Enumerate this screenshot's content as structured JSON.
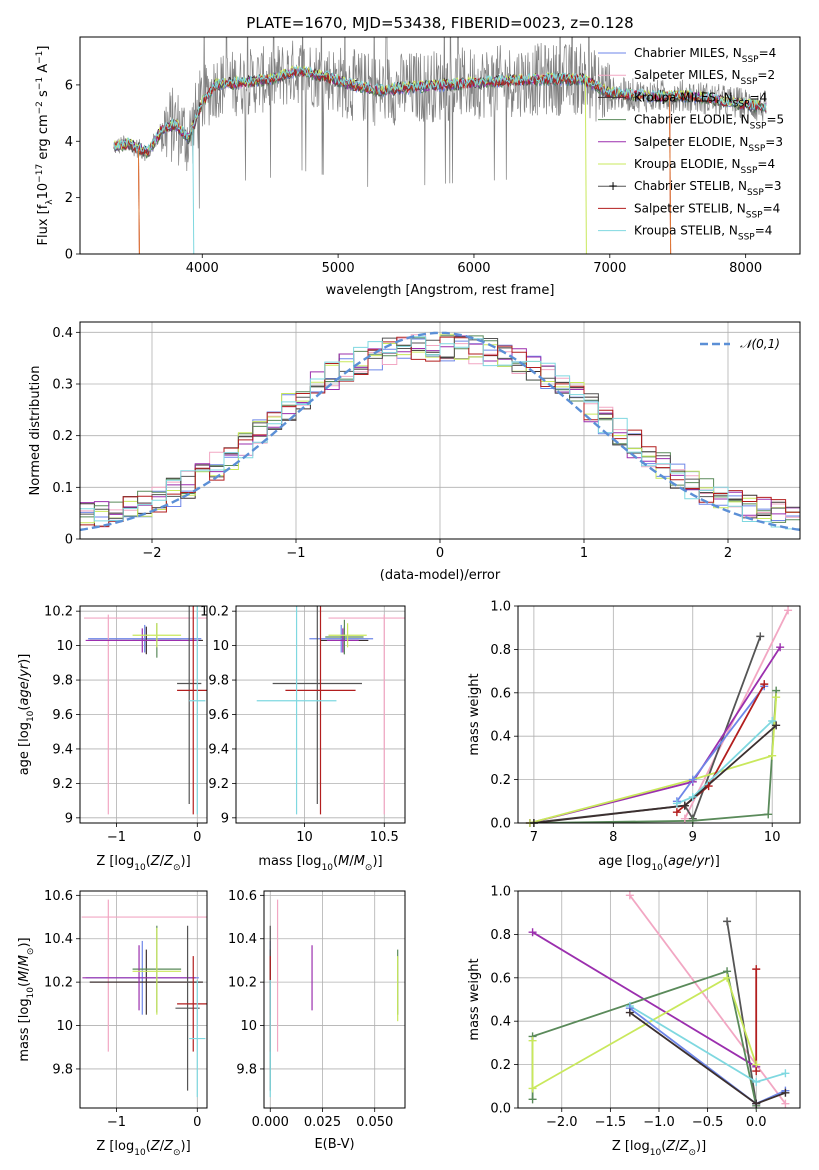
{
  "title": "PLATE=1670, MJD=53438, FIBERID=0023, z=0.128",
  "colors": {
    "chab_miles": "#6e86e8",
    "salp_miles": "#f2a7c3",
    "kroupa_miles": "#3b2f2f",
    "chab_elodie": "#5a8a5a",
    "salp_elodie": "#9b2fae",
    "kroupa_elodie": "#c9e85c",
    "chab_stelib": "#555555",
    "salp_stelib": "#b21e1e",
    "kroupa_stelib": "#7fd8e0",
    "data": "#808080",
    "gauss": "#5b8fd6"
  },
  "legend": [
    {
      "key": "chab_miles",
      "base": "Chabrier MILES, N",
      "sub": "SSP",
      "tail": "=4"
    },
    {
      "key": "salp_miles",
      "base": "Salpeter MILES, N",
      "sub": "SSP",
      "tail": "=2"
    },
    {
      "key": "kroupa_miles",
      "base": "Kroupa MILES, N",
      "sub": "SSP",
      "tail": "=4"
    },
    {
      "key": "chab_elodie",
      "base": "Chabrier ELODIE, N",
      "sub": "SSP",
      "tail": "=5"
    },
    {
      "key": "salp_elodie",
      "base": "Salpeter ELODIE, N",
      "sub": "SSP",
      "tail": "=3"
    },
    {
      "key": "kroupa_elodie",
      "base": "Kroupa ELODIE, N",
      "sub": "SSP",
      "tail": "=4"
    },
    {
      "key": "chab_stelib",
      "base": "Chabrier STELIB, N",
      "sub": "SSP",
      "tail": "=3"
    },
    {
      "key": "salp_stelib",
      "base": "Salpeter STELIB, N",
      "sub": "SSP",
      "tail": "=4"
    },
    {
      "key": "kroupa_stelib",
      "base": "Kroupa STELIB, N",
      "sub": "SSP",
      "tail": "=4"
    }
  ],
  "chart_data": [
    {
      "id": "spectrum",
      "type": "line",
      "xlabel": "wavelength [Angstrom, rest frame]",
      "ylabel": "Flux [f_λ 10^-17 erg cm^-2 s^-1 A^-1]",
      "xlim": [
        3100,
        8400
      ],
      "ylim": [
        0,
        7.7
      ],
      "xticks": [
        4000,
        5000,
        6000,
        7000,
        8000
      ],
      "yticks": [
        0,
        2,
        4,
        6
      ],
      "continuum": [
        [
          3350,
          3.8
        ],
        [
          3450,
          3.9
        ],
        [
          3600,
          3.6
        ],
        [
          3700,
          4.4
        ],
        [
          3800,
          4.6
        ],
        [
          3900,
          4.1
        ],
        [
          4000,
          5.4
        ],
        [
          4100,
          6.0
        ],
        [
          4300,
          6.1
        ],
        [
          4500,
          6.2
        ],
        [
          4700,
          6.5
        ],
        [
          4900,
          6.3
        ],
        [
          5100,
          6.0
        ],
        [
          5300,
          5.8
        ],
        [
          5500,
          5.9
        ],
        [
          5800,
          6.0
        ],
        [
          6100,
          6.1
        ],
        [
          6500,
          6.2
        ],
        [
          6800,
          6.2
        ],
        [
          7000,
          5.7
        ],
        [
          7300,
          5.6
        ],
        [
          7600,
          5.6
        ],
        [
          8000,
          5.3
        ],
        [
          8150,
          5.2
        ]
      ],
      "data_range": [
        3350,
        8150
      ]
    },
    {
      "id": "residuals",
      "type": "histogram",
      "xlabel": "(data-model)/error",
      "ylabel": "Normed distribution",
      "xlim": [
        -2.5,
        2.5
      ],
      "ylim": [
        0,
        0.42
      ],
      "xticks": [
        -2,
        -1,
        0,
        1,
        2
      ],
      "yticks": [
        0.0,
        0.1,
        0.2,
        0.3,
        0.4
      ],
      "gauss_label": "𝒩(0,1)",
      "bin_width": 0.1
    },
    {
      "id": "age_vs_Z",
      "type": "scatter",
      "xlabel": "Z [log10(Z/Z⊙)]",
      "ylabel": "age [log10(age/yr)]",
      "xlim": [
        -1.45,
        0.12
      ],
      "ylim": [
        8.97,
        10.23
      ],
      "xticks": [
        -1,
        0
      ],
      "yticks": [
        9.0,
        9.2,
        9.4,
        9.6,
        9.8,
        10.0,
        10.2
      ],
      "points": [
        {
          "key": "chab_miles",
          "x": -0.65,
          "y": 10.04,
          "xerr": 0.7,
          "yerr": 0.08
        },
        {
          "key": "salp_miles",
          "x": -0.55,
          "y": 10.16,
          "xerr": 0.85,
          "yerr": 0.0
        },
        {
          "key": "salp_miles",
          "x": -1.1,
          "y": 9.6,
          "xerr": 0.0,
          "yerr": 0.58
        },
        {
          "key": "kroupa_miles",
          "x": -0.63,
          "y": 10.03,
          "xerr": 0.7,
          "yerr": 0.08
        },
        {
          "key": "chab_elodie",
          "x": -0.5,
          "y": 10.03,
          "xerr": 0.3,
          "yerr": 0.1
        },
        {
          "key": "salp_elodie",
          "x": -0.68,
          "y": 10.03,
          "xerr": 0.7,
          "yerr": 0.07
        },
        {
          "key": "kroupa_elodie",
          "x": -0.5,
          "y": 10.06,
          "xerr": 0.3,
          "yerr": 0.07
        },
        {
          "key": "chab_stelib",
          "x": -0.1,
          "y": 9.78,
          "xerr": 0.15,
          "yerr": 0.7
        },
        {
          "key": "salp_stelib",
          "x": -0.05,
          "y": 9.74,
          "xerr": 0.2,
          "yerr": 0.72
        },
        {
          "key": "kroupa_stelib",
          "x": 0.0,
          "y": 9.68,
          "xerr": 0.1,
          "yerr": 0.66
        }
      ]
    },
    {
      "id": "age_vs_mass",
      "type": "scatter",
      "xlabel": "mass [log10(M/M⊙)]",
      "ylabel": "",
      "xlim": [
        9.57,
        10.63
      ],
      "ylim": [
        8.97,
        10.23
      ],
      "xticks": [
        10.0,
        10.5
      ],
      "yticks": [
        9.0,
        9.2,
        9.4,
        9.6,
        9.8,
        10.0,
        10.2
      ],
      "points": [
        {
          "key": "chab_miles",
          "x": 10.23,
          "y": 10.04,
          "xerr": 0.2,
          "yerr": 0.08
        },
        {
          "key": "salp_miles",
          "x": 10.5,
          "y": 10.16,
          "xerr": 0.35,
          "yerr": 0.0
        },
        {
          "key": "salp_miles",
          "x": 10.5,
          "y": 9.6,
          "xerr": 0.0,
          "yerr": 0.58
        },
        {
          "key": "kroupa_miles",
          "x": 10.25,
          "y": 10.03,
          "xerr": 0.15,
          "yerr": 0.08
        },
        {
          "key": "chab_elodie",
          "x": 10.25,
          "y": 10.05,
          "xerr": 0.12,
          "yerr": 0.1
        },
        {
          "key": "salp_elodie",
          "x": 10.24,
          "y": 10.03,
          "xerr": 0.1,
          "yerr": 0.07
        },
        {
          "key": "kroupa_elodie",
          "x": 10.27,
          "y": 10.06,
          "xerr": 0.12,
          "yerr": 0.07
        },
        {
          "key": "chab_stelib",
          "x": 10.08,
          "y": 9.78,
          "xerr": 0.28,
          "yerr": 0.7
        },
        {
          "key": "salp_stelib",
          "x": 10.1,
          "y": 9.74,
          "xerr": 0.22,
          "yerr": 0.72
        },
        {
          "key": "kroupa_stelib",
          "x": 9.95,
          "y": 9.68,
          "xerr": 0.25,
          "yerr": 0.66
        }
      ]
    },
    {
      "id": "weight_vs_age",
      "type": "line",
      "xlabel": "age [log10(age/yr)]",
      "ylabel": "mass weight",
      "xlim": [
        6.8,
        10.35
      ],
      "ylim": [
        0,
        1.0
      ],
      "xticks": [
        7,
        8,
        9,
        10
      ],
      "yticks": [
        0.0,
        0.2,
        0.4,
        0.6,
        0.8,
        1.0
      ],
      "series": [
        {
          "key": "salp_miles",
          "x": [
            8.9,
            10.2
          ],
          "y": [
            0.02,
            0.98
          ]
        },
        {
          "key": "chab_stelib",
          "x": [
            6.95,
            8.9,
            9.0,
            9.85
          ],
          "y": [
            0.0,
            0.08,
            0.02,
            0.86
          ]
        },
        {
          "key": "salp_elodie",
          "x": [
            6.95,
            9.0,
            10.1
          ],
          "y": [
            0.0,
            0.19,
            0.81
          ]
        },
        {
          "key": "chab_elodie",
          "x": [
            7.0,
            9.0,
            9.95,
            10.05
          ],
          "y": [
            0.0,
            0.01,
            0.04,
            0.61
          ]
        },
        {
          "key": "kroupa_elodie",
          "x": [
            6.95,
            9.0,
            10.0,
            10.05
          ],
          "y": [
            0.0,
            0.2,
            0.31,
            0.58
          ]
        },
        {
          "key": "chab_miles",
          "x": [
            8.8,
            9.0,
            9.9
          ],
          "y": [
            0.1,
            0.2,
            0.63
          ]
        },
        {
          "key": "salp_stelib",
          "x": [
            8.8,
            9.2,
            9.9
          ],
          "y": [
            0.05,
            0.17,
            0.64
          ]
        },
        {
          "key": "kroupa_stelib",
          "x": [
            8.8,
            9.0,
            10.0
          ],
          "y": [
            0.09,
            0.12,
            0.47
          ]
        },
        {
          "key": "kroupa_miles",
          "x": [
            7.0,
            8.9,
            10.05
          ],
          "y": [
            0.0,
            0.08,
            0.45
          ]
        }
      ]
    },
    {
      "id": "mass_vs_Z",
      "type": "scatter",
      "xlabel": "Z [log10(Z/Z⊙)]",
      "ylabel": "mass [log10(M/M⊙)]",
      "xlim": [
        -1.45,
        0.12
      ],
      "ylim": [
        9.62,
        10.62
      ],
      "xticks": [
        -1,
        0
      ],
      "yticks": [
        9.8,
        10.0,
        10.2,
        10.4,
        10.6
      ],
      "points": [
        {
          "key": "chab_miles",
          "x": -0.68,
          "y": 10.22,
          "xerr": 0.7,
          "yerr": 0.17
        },
        {
          "key": "salp_miles",
          "x": -0.58,
          "y": 10.5,
          "xerr": 0.85,
          "yerr": 0.0
        },
        {
          "key": "salp_miles",
          "x": -1.1,
          "y": 10.23,
          "xerr": 0.0,
          "yerr": 0.35
        },
        {
          "key": "kroupa_miles",
          "x": -0.63,
          "y": 10.2,
          "xerr": 0.7,
          "yerr": 0.15
        },
        {
          "key": "chab_elodie",
          "x": -0.5,
          "y": 10.26,
          "xerr": 0.3,
          "yerr": 0.2
        },
        {
          "key": "salp_elodie",
          "x": -0.72,
          "y": 10.22,
          "xerr": 0.7,
          "yerr": 0.15
        },
        {
          "key": "kroupa_elodie",
          "x": -0.5,
          "y": 10.25,
          "xerr": 0.3,
          "yerr": 0.2
        },
        {
          "key": "chab_stelib",
          "x": -0.12,
          "y": 10.08,
          "xerr": 0.15,
          "yerr": 0.38
        },
        {
          "key": "salp_stelib",
          "x": -0.05,
          "y": 10.1,
          "xerr": 0.2,
          "yerr": 0.22
        },
        {
          "key": "kroupa_stelib",
          "x": 0.0,
          "y": 9.94,
          "xerr": 0.1,
          "yerr": 0.27
        }
      ]
    },
    {
      "id": "mass_vs_ebv",
      "type": "scatter",
      "xlabel": "E(B-V)",
      "ylabel": "",
      "xlim": [
        -0.003,
        0.0645
      ],
      "ylim": [
        9.62,
        10.62
      ],
      "xticks": [
        0.0,
        0.025,
        0.05
      ],
      "yticks": [
        9.8,
        10.0,
        10.2,
        10.4,
        10.6
      ],
      "points": [
        {
          "key": "chab_miles",
          "x": 0.0,
          "y": 10.22,
          "yerr": 0.17
        },
        {
          "key": "salp_miles",
          "x": 0.0035,
          "y": 10.23,
          "yerr": 0.35
        },
        {
          "key": "kroupa_miles",
          "x": 0.0,
          "y": 10.2,
          "yerr": 0.15
        },
        {
          "key": "chab_elodie",
          "x": 0.061,
          "y": 10.2,
          "yerr": 0.15
        },
        {
          "key": "salp_elodie",
          "x": 0.02,
          "y": 10.22,
          "yerr": 0.15
        },
        {
          "key": "kroupa_elodie",
          "x": 0.061,
          "y": 10.17,
          "yerr": 0.15
        },
        {
          "key": "chab_stelib",
          "x": 0.0,
          "y": 10.08,
          "yerr": 0.38
        },
        {
          "key": "salp_stelib",
          "x": 0.0,
          "y": 10.1,
          "yerr": 0.22
        },
        {
          "key": "kroupa_stelib",
          "x": 0.0,
          "y": 9.94,
          "yerr": 0.27
        }
      ]
    },
    {
      "id": "weight_vs_Z",
      "type": "line",
      "xlabel": "Z [log10(Z/Z⊙)]",
      "ylabel": "mass weight",
      "xlim": [
        -2.45,
        0.45
      ],
      "ylim": [
        0,
        1.0
      ],
      "xticks": [
        -2.0,
        -1.5,
        -1.0,
        -0.5,
        0.0
      ],
      "yticks": [
        0.0,
        0.2,
        0.4,
        0.6,
        0.8,
        1.0
      ],
      "series": [
        {
          "key": "salp_miles",
          "x": [
            -1.3,
            0.3
          ],
          "y": [
            0.98,
            0.02
          ]
        },
        {
          "key": "chab_stelib",
          "x": [
            -0.3,
            0.0
          ],
          "y": [
            0.86,
            0.02
          ]
        },
        {
          "key": "salp_elodie",
          "x": [
            -2.3,
            0.0
          ],
          "y": [
            0.81,
            0.19
          ]
        },
        {
          "key": "chab_elodie",
          "x": [
            -2.3,
            -2.3,
            -0.3,
            0.0
          ],
          "y": [
            0.04,
            0.33,
            0.63,
            0.01
          ]
        },
        {
          "key": "kroupa_elodie",
          "x": [
            -2.3,
            -2.3,
            -0.3,
            0.0
          ],
          "y": [
            0.31,
            0.09,
            0.6,
            0.2
          ]
        },
        {
          "key": "kroupa_stelib",
          "x": [
            -1.3,
            0.0,
            0.3
          ],
          "y": [
            0.47,
            0.12,
            0.16
          ]
        },
        {
          "key": "salp_stelib",
          "x": [
            0.0,
            0.0
          ],
          "y": [
            0.17,
            0.64
          ]
        },
        {
          "key": "chab_miles",
          "x": [
            -1.3,
            0.0,
            0.3
          ],
          "y": [
            0.46,
            0.02,
            0.08
          ]
        },
        {
          "key": "kroupa_miles",
          "x": [
            -1.3,
            0.0,
            0.3
          ],
          "y": [
            0.44,
            0.02,
            0.07
          ]
        }
      ]
    }
  ]
}
